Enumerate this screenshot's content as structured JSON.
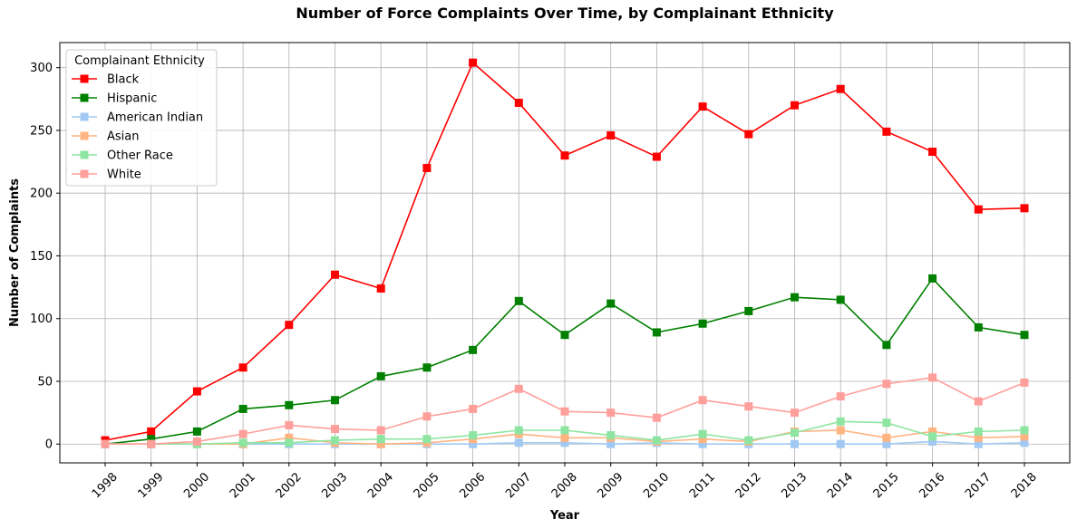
{
  "chart_data": {
    "type": "line",
    "title": "Number of Force Complaints Over Time, by Complainant Ethnicity",
    "xlabel": "Year",
    "ylabel": "Number of Complaints",
    "x": [
      "1998",
      "1999",
      "2000",
      "2001",
      "2002",
      "2003",
      "2004",
      "2005",
      "2006",
      "2007",
      "2008",
      "2009",
      "2010",
      "2011",
      "2012",
      "2013",
      "2014",
      "2015",
      "2016",
      "2017",
      "2018"
    ],
    "ylim": [
      -15,
      320
    ],
    "yticks": [
      0,
      50,
      100,
      150,
      200,
      250,
      300
    ],
    "grid": true,
    "legend": {
      "title": "Complainant Ethnicity",
      "placement": "top-left"
    },
    "series": [
      {
        "name": "Black",
        "color": "#ff0000",
        "values": [
          3,
          10,
          42,
          61,
          95,
          135,
          124,
          220,
          304,
          272,
          230,
          246,
          229,
          269,
          247,
          270,
          283,
          249,
          233,
          187,
          188
        ]
      },
      {
        "name": "Hispanic",
        "color": "#008000",
        "values": [
          0,
          4,
          10,
          28,
          31,
          35,
          54,
          61,
          75,
          114,
          87,
          112,
          89,
          96,
          106,
          117,
          115,
          79,
          132,
          93,
          87
        ]
      },
      {
        "name": "American Indian",
        "color": "#a1c9f4",
        "values": [
          0,
          0,
          0,
          0,
          0,
          0,
          0,
          0,
          0,
          1,
          1,
          0,
          1,
          0,
          0,
          0,
          0,
          0,
          2,
          0,
          1
        ]
      },
      {
        "name": "Asian",
        "color": "#ffb482",
        "values": [
          0,
          0,
          0,
          0,
          5,
          1,
          0,
          1,
          4,
          8,
          5,
          5,
          2,
          4,
          2,
          10,
          11,
          5,
          10,
          5,
          6
        ]
      },
      {
        "name": "Other Race",
        "color": "#8de5a1",
        "values": [
          0,
          0,
          0,
          1,
          1,
          3,
          4,
          4,
          7,
          11,
          11,
          7,
          3,
          8,
          3,
          9,
          18,
          17,
          6,
          10,
          11
        ]
      },
      {
        "name": "White",
        "color": "#ff9f9b",
        "values": [
          0,
          0,
          2,
          8,
          15,
          12,
          11,
          22,
          28,
          44,
          26,
          25,
          21,
          35,
          30,
          25,
          38,
          48,
          53,
          34,
          49
        ]
      }
    ]
  }
}
